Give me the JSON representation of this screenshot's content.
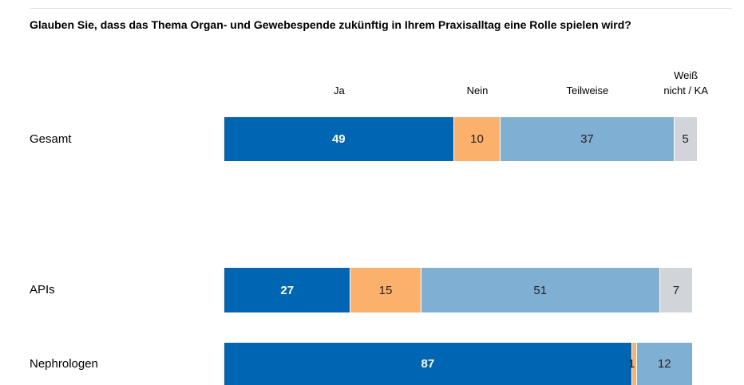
{
  "chart_data": {
    "type": "bar",
    "orientation": "horizontal",
    "stacked": true,
    "title": "Glauben Sie, dass das Thema Organ- und Gewebespende zukünftig in Ihrem Praxisalltag eine Rolle spielen wird?",
    "categories": [
      "Gesamt",
      "APIs",
      "Nephrologen"
    ],
    "series": [
      {
        "name": "Ja",
        "color": "#0066b3",
        "values": [
          49,
          27,
          87
        ]
      },
      {
        "name": "Nein",
        "color": "#fbb06b",
        "values": [
          10,
          15,
          1
        ]
      },
      {
        "name": "Teilweise",
        "color": "#7fb0d3",
        "values": [
          37,
          51,
          12
        ]
      },
      {
        "name": "Weiß nicht / KA",
        "color": "#d1d5da",
        "values": [
          5,
          7,
          null
        ]
      }
    ]
  }
}
